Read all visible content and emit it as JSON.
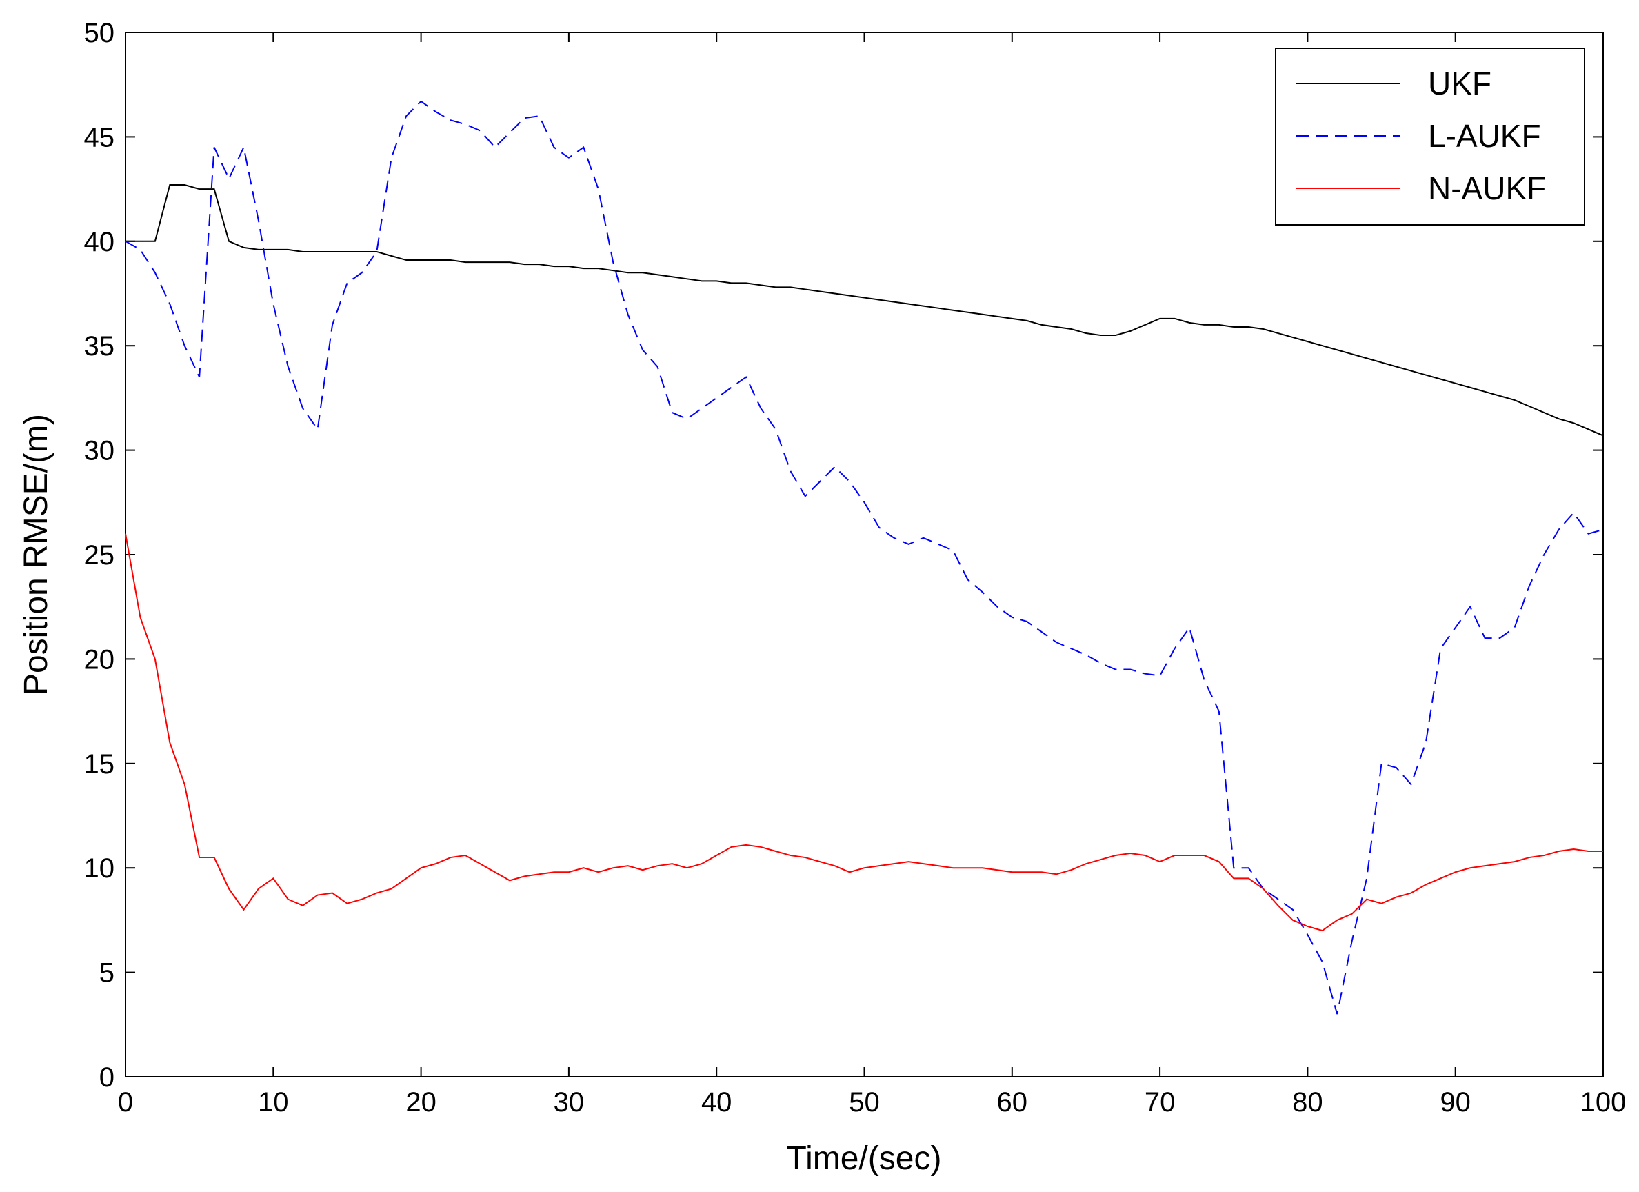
{
  "chart_data": {
    "type": "line",
    "xlabel": "Time/(sec)",
    "ylabel": "Position RMSE/(m)",
    "x": [
      0,
      1,
      2,
      3,
      4,
      5,
      6,
      7,
      8,
      9,
      10,
      11,
      12,
      13,
      14,
      15,
      16,
      17,
      18,
      19,
      20,
      21,
      22,
      23,
      24,
      25,
      26,
      27,
      28,
      29,
      30,
      31,
      32,
      33,
      34,
      35,
      36,
      37,
      38,
      39,
      40,
      41,
      42,
      43,
      44,
      45,
      46,
      47,
      48,
      49,
      50,
      51,
      52,
      53,
      54,
      55,
      56,
      57,
      58,
      59,
      60,
      61,
      62,
      63,
      64,
      65,
      66,
      67,
      68,
      69,
      70,
      71,
      72,
      73,
      74,
      75,
      76,
      77,
      78,
      79,
      80,
      81,
      82,
      83,
      84,
      85,
      86,
      87,
      88,
      89,
      90,
      91,
      92,
      93,
      94,
      95,
      96,
      97,
      98,
      99,
      100
    ],
    "series": [
      {
        "name": "UKF",
        "color": "#000000",
        "dash": false,
        "values": [
          40,
          40,
          40,
          42.7,
          42.7,
          42.5,
          42.5,
          40,
          39.7,
          39.6,
          39.6,
          39.6,
          39.5,
          39.5,
          39.5,
          39.5,
          39.5,
          39.5,
          39.3,
          39.1,
          39.1,
          39.1,
          39.1,
          39.0,
          39.0,
          39.0,
          39.0,
          38.9,
          38.9,
          38.8,
          38.8,
          38.7,
          38.7,
          38.6,
          38.5,
          38.5,
          38.4,
          38.3,
          38.2,
          38.1,
          38.1,
          38.0,
          38.0,
          37.9,
          37.8,
          37.8,
          37.7,
          37.6,
          37.5,
          37.4,
          37.3,
          37.2,
          37.1,
          37.0,
          36.9,
          36.8,
          36.7,
          36.6,
          36.5,
          36.4,
          36.3,
          36.2,
          36.0,
          35.9,
          35.8,
          35.6,
          35.5,
          35.5,
          35.7,
          36.0,
          36.3,
          36.3,
          36.1,
          36.0,
          36.0,
          35.9,
          35.9,
          35.8,
          35.6,
          35.4,
          35.2,
          35.0,
          34.8,
          34.6,
          34.4,
          34.2,
          34.0,
          33.8,
          33.6,
          33.4,
          33.2,
          33.0,
          32.8,
          32.6,
          32.4,
          32.1,
          31.8,
          31.5,
          31.3,
          31.0,
          30.7
        ]
      },
      {
        "name": "L-AUKF",
        "color": "#0000ff",
        "dash": true,
        "values": [
          40,
          39.6,
          38.5,
          37,
          35,
          33.5,
          44.5,
          43,
          44.5,
          41,
          37,
          34,
          32,
          31,
          36,
          38,
          38.5,
          39.5,
          44,
          46,
          46.7,
          46.2,
          45.8,
          45.6,
          45.3,
          44.5,
          45.2,
          45.9,
          46,
          44.5,
          44,
          44.5,
          42.5,
          39,
          36.5,
          34.8,
          34,
          31.8,
          31.5,
          32,
          32.5,
          33,
          33.5,
          32,
          31,
          29,
          27.8,
          28.5,
          29.2,
          28.5,
          27.5,
          26.3,
          25.8,
          25.5,
          25.8,
          25.5,
          25.2,
          23.8,
          23.2,
          22.5,
          22,
          21.8,
          21.3,
          20.8,
          20.5,
          20.2,
          19.8,
          19.5,
          19.5,
          19.3,
          19.2,
          20.5,
          21.5,
          19,
          17.5,
          10,
          10,
          9,
          8.5,
          8,
          6.8,
          5.5,
          3,
          6.5,
          9.5,
          15,
          14.8,
          14,
          16,
          20.5,
          21.5,
          22.5,
          21,
          21,
          21.5,
          23.5,
          25,
          26.2,
          27,
          26,
          26.2
        ]
      },
      {
        "name": "N-AUKF",
        "color": "#ff0000",
        "dash": false,
        "values": [
          26,
          22,
          20,
          16,
          14,
          10.5,
          10.5,
          9,
          8,
          9,
          9.5,
          8.5,
          8.2,
          8.7,
          8.8,
          8.3,
          8.5,
          8.8,
          9,
          9.5,
          10,
          10.2,
          10.5,
          10.6,
          10.2,
          9.8,
          9.4,
          9.6,
          9.7,
          9.8,
          9.8,
          10,
          9.8,
          10,
          10.1,
          9.9,
          10.1,
          10.2,
          10,
          10.2,
          10.6,
          11,
          11.1,
          11,
          10.8,
          10.6,
          10.5,
          10.3,
          10.1,
          9.8,
          10,
          10.1,
          10.2,
          10.3,
          10.2,
          10.1,
          10,
          10,
          10,
          9.9,
          9.8,
          9.8,
          9.8,
          9.7,
          9.9,
          10.2,
          10.4,
          10.6,
          10.7,
          10.6,
          10.3,
          10.6,
          10.6,
          10.6,
          10.3,
          9.5,
          9.5,
          9,
          8.2,
          7.5,
          7.2,
          7,
          7.5,
          7.8,
          8.5,
          8.3,
          8.6,
          8.8,
          9.2,
          9.5,
          9.8,
          10,
          10.1,
          10.2,
          10.3,
          10.5,
          10.6,
          10.8,
          10.9,
          10.8,
          10.8
        ]
      }
    ],
    "xlim": [
      0,
      100
    ],
    "xticks": [
      0,
      10,
      20,
      30,
      40,
      50,
      60,
      70,
      80,
      90,
      100
    ],
    "ylim": [
      0,
      50
    ],
    "yticks": [
      0,
      5,
      10,
      15,
      20,
      25,
      30,
      35,
      40,
      45,
      50
    ],
    "legend": "upper right"
  }
}
